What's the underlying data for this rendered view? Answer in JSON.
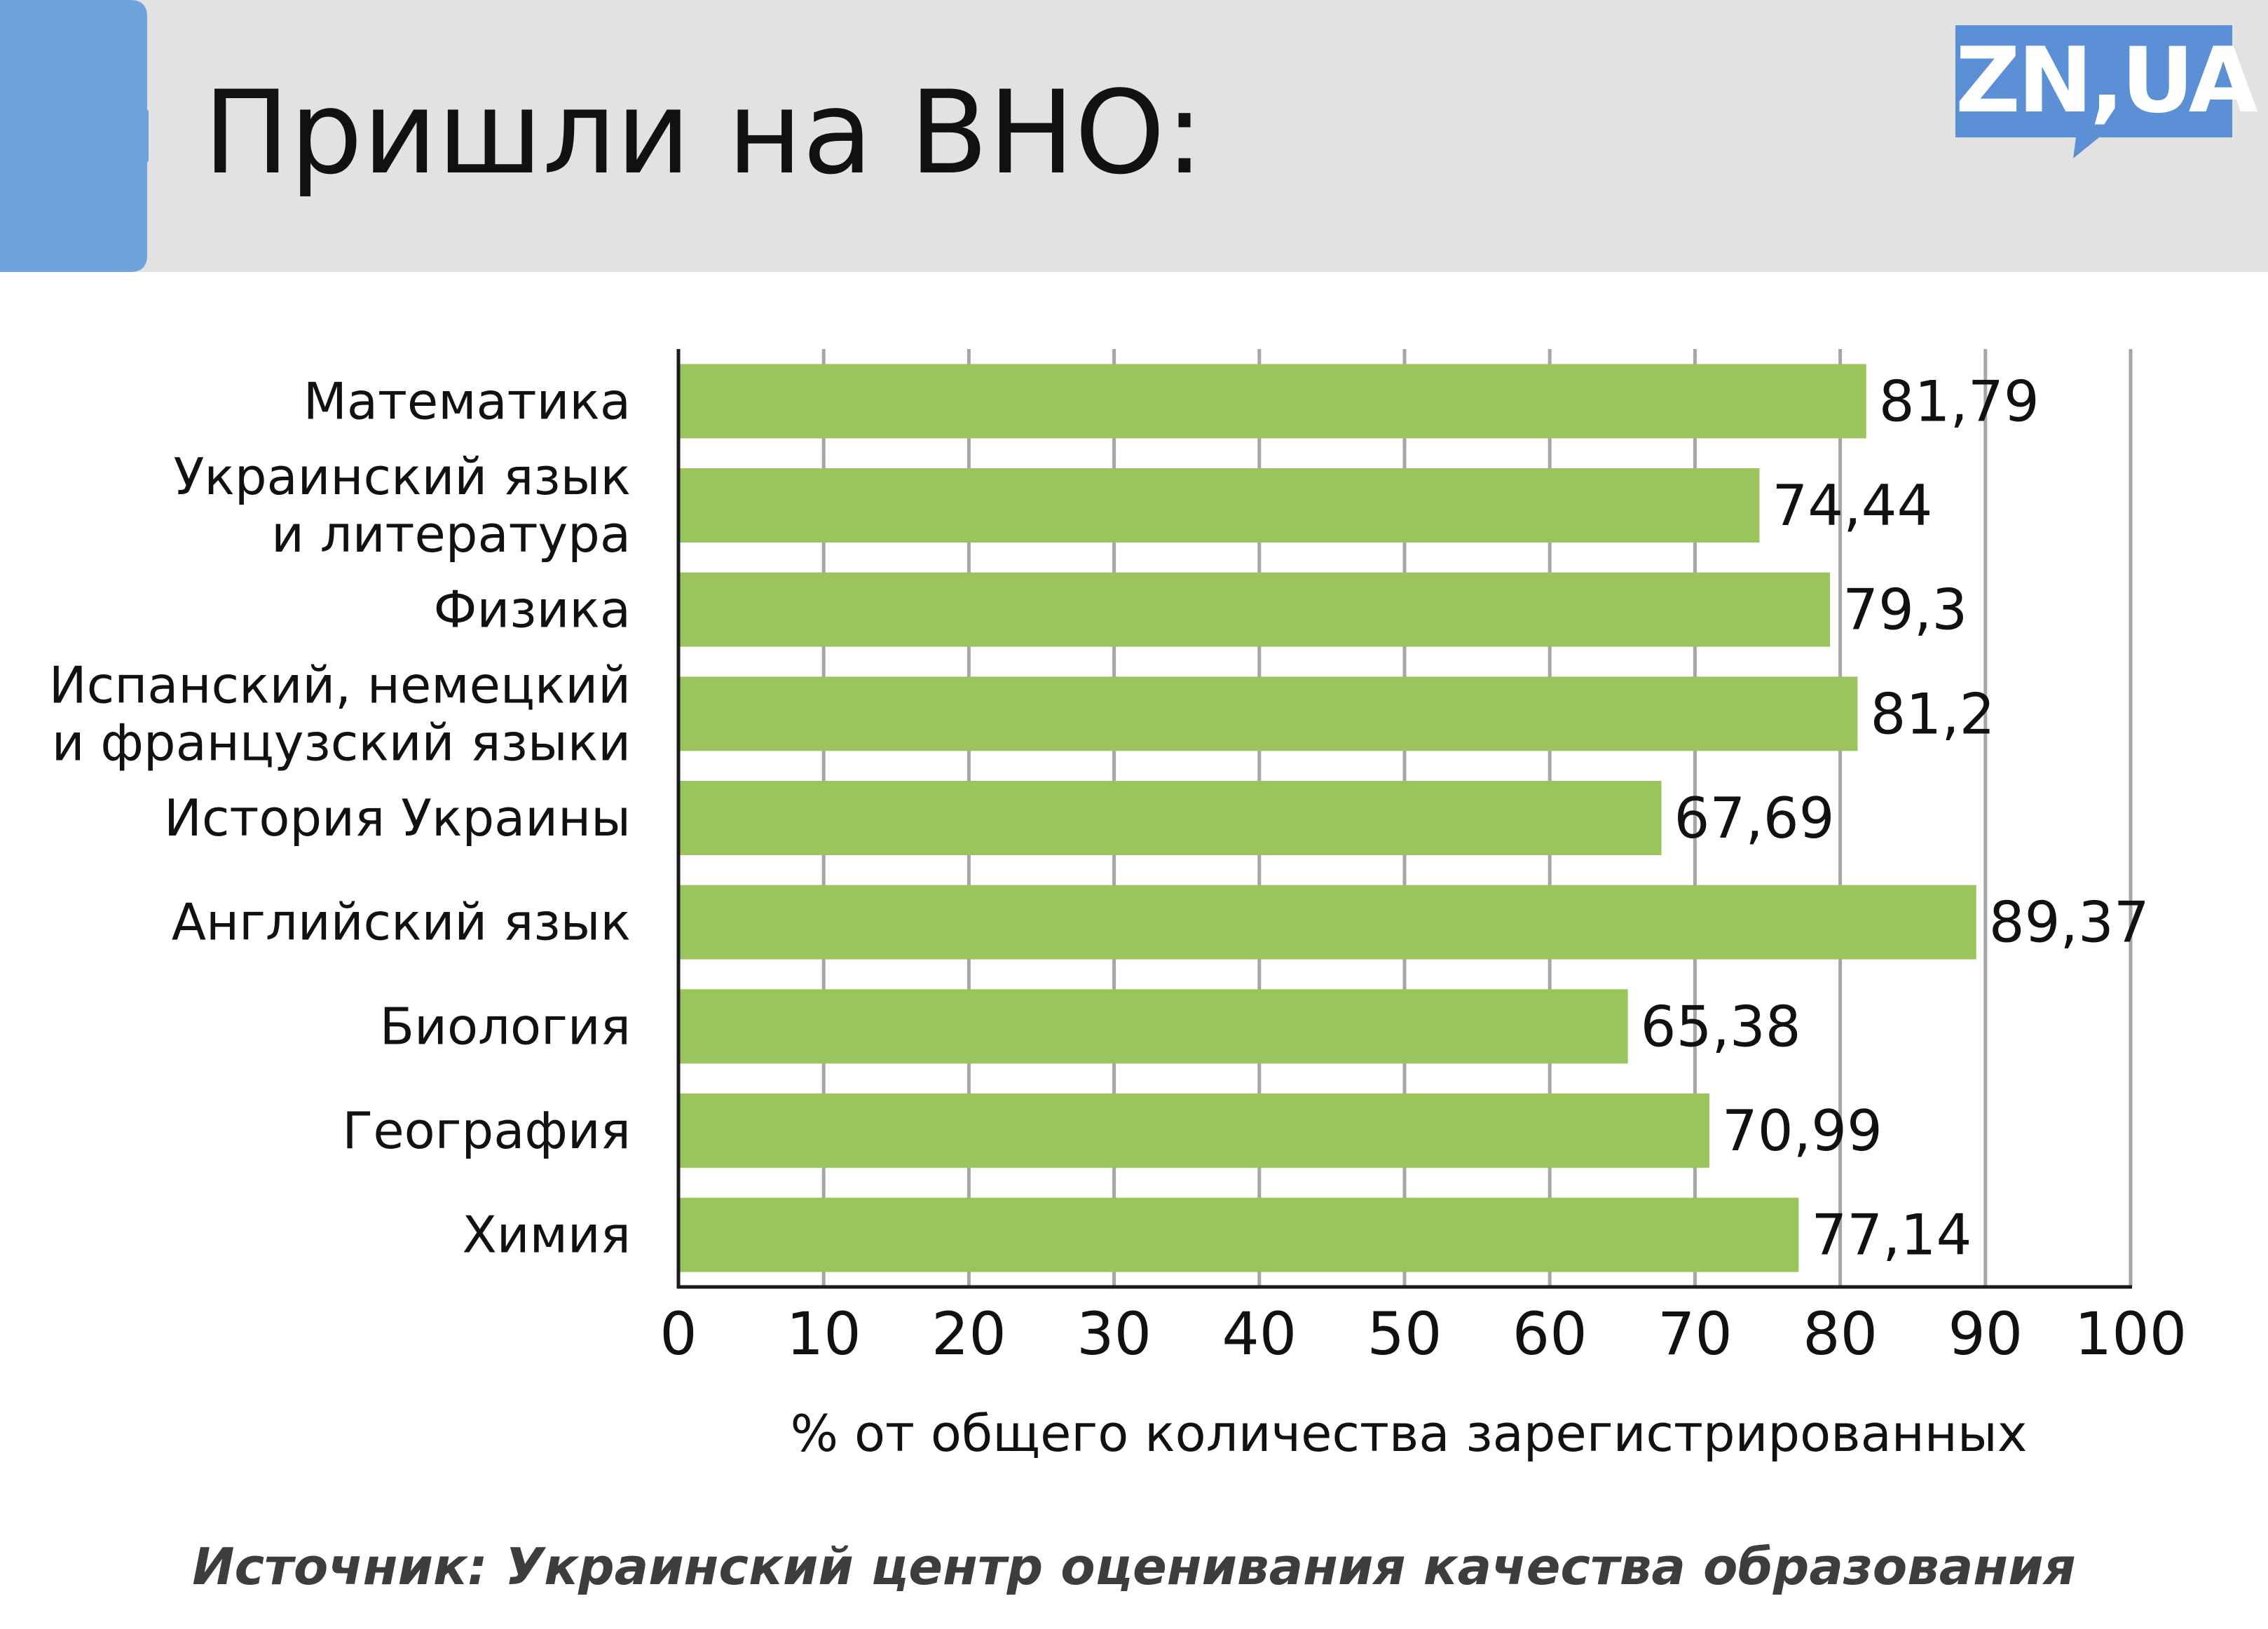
{
  "header": {
    "title": "Пришли на ВНО:",
    "logo_text": "ZN,UA",
    "accent_color": "#6fa3dc",
    "logo_color": "#5b8fd6"
  },
  "chart_data": {
    "type": "bar",
    "orientation": "horizontal",
    "categories": [
      "Математика",
      "Украинский язык\nи литература",
      "Физика",
      "Испанский, немецкий\nи французский языки",
      "История Украины",
      "Английский язык",
      "Биология",
      "География",
      "Химия"
    ],
    "values": [
      81.79,
      74.44,
      79.3,
      81.2,
      67.69,
      89.37,
      65.38,
      70.99,
      77.14
    ],
    "data_labels": [
      "81,79",
      "74,44",
      "79,3",
      "81,2",
      "67,69",
      "89,37",
      "65,38",
      "70,99",
      "77,14"
    ],
    "title": "",
    "xlabel": "% от общего количества зарегистрированных",
    "ylabel": "",
    "xlim": [
      0,
      100
    ],
    "x_ticks": [
      0,
      10,
      20,
      30,
      40,
      50,
      60,
      70,
      80,
      90,
      100
    ],
    "grid": true,
    "bar_color": "#9bc45c",
    "grid_color": "#a6a6a6"
  },
  "footer": {
    "source": "Источник: Украинский центр оценивания качества образования"
  }
}
